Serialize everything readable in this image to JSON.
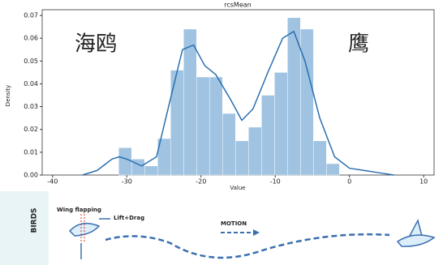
{
  "chart_data": {
    "type": "histogram",
    "title": "rcsMean",
    "x_label": "Value",
    "y_label": "Density",
    "bins": [
      -31.1,
      -29.35,
      -27.6,
      -25.85,
      -24.1,
      -22.35,
      -20.6,
      -18.85,
      -17.1,
      -15.35,
      -13.6,
      -11.85,
      -10.1,
      -8.35,
      -6.6,
      -4.85,
      -3.1,
      -1.35
    ],
    "values": [
      0.012,
      0.007,
      0.004,
      0.016,
      0.046,
      0.064,
      0.043,
      0.043,
      0.027,
      0.015,
      0.021,
      0.035,
      0.045,
      0.069,
      0.064,
      0.015,
      0.005
    ],
    "color": "#9fc3e1",
    "kde": {
      "color": "#2a6fb0",
      "x": [
        -36,
        -34,
        -32,
        -31,
        -30,
        -28,
        -26,
        -24,
        -22.5,
        -21,
        -19.5,
        -18,
        -16,
        -14.5,
        -13,
        -11,
        -9,
        -7.5,
        -6,
        -4,
        -2,
        0,
        2,
        4,
        6
      ],
      "y": [
        0,
        0.002,
        0.007,
        0.008,
        0.007,
        0.004,
        0.008,
        0.035,
        0.055,
        0.057,
        0.048,
        0.044,
        0.033,
        0.024,
        0.029,
        0.045,
        0.06,
        0.063,
        0.05,
        0.025,
        0.008,
        0.003,
        0.002,
        0.001,
        0
      ]
    },
    "xlim": [
      -41.4,
      11.4
    ],
    "ylim": [
      0,
      0.0725
    ],
    "xticks": [
      -40,
      -30,
      -20,
      -10,
      0,
      10
    ],
    "yticks": [
      {
        "value": 0,
        "label": "0.00"
      },
      {
        "value": 0.01,
        "label": "0.01"
      },
      {
        "value": 0.02,
        "label": "0.02"
      },
      {
        "value": 0.03,
        "label": "0.03"
      },
      {
        "value": 0.04,
        "label": "0.04"
      },
      {
        "value": 0.05,
        "label": "0.05"
      },
      {
        "value": 0.06,
        "label": "0.06"
      },
      {
        "value": 0.07,
        "label": "0.07"
      }
    ],
    "annotations": [
      "海鸥",
      "鹰"
    ]
  },
  "diagram": {
    "side_label": "BIRDS",
    "wing_label": "Wing flapping",
    "force_label": "Lift+Drag",
    "motion_label": "MOTION"
  }
}
